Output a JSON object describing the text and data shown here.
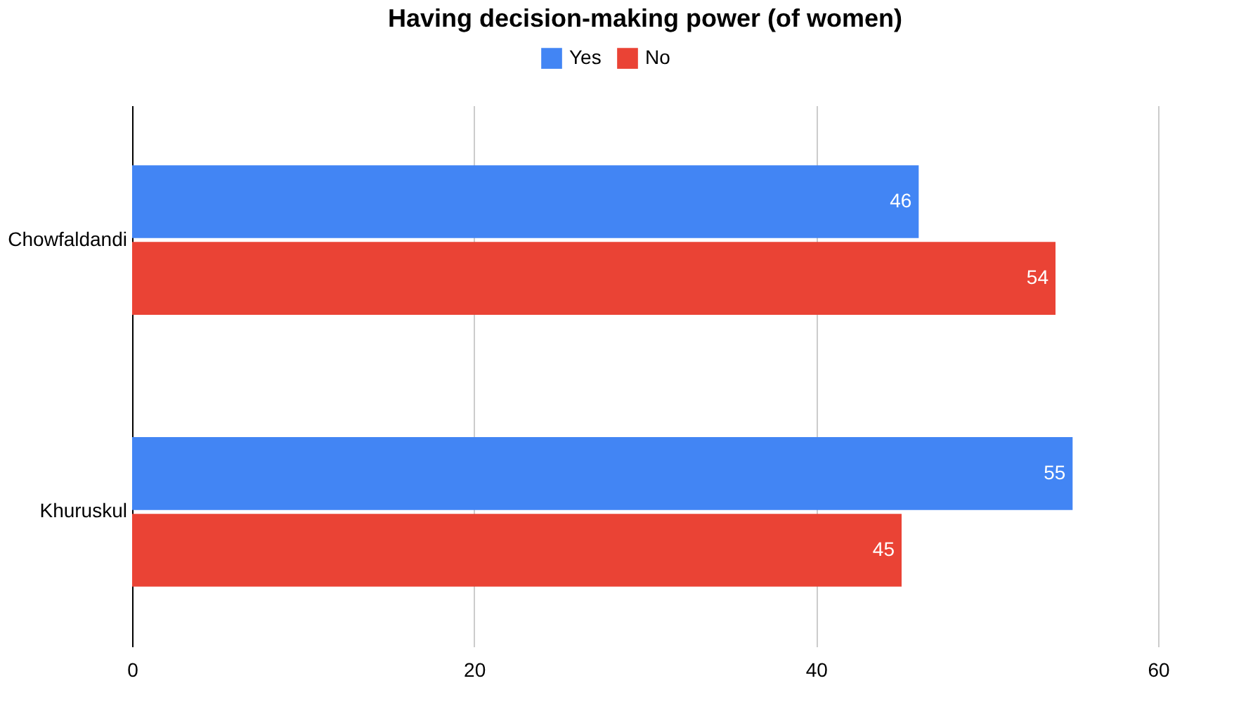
{
  "chart_data": {
    "type": "bar",
    "orientation": "horizontal",
    "title": "Having decision-making power (of women)",
    "categories": [
      "Chowfaldandi",
      "Khuruskul"
    ],
    "series": [
      {
        "name": "Yes",
        "color": "#4285f4",
        "values": [
          46,
          55
        ]
      },
      {
        "name": "No",
        "color": "#ea4335",
        "values": [
          54,
          45
        ]
      }
    ],
    "xlim": [
      0,
      60
    ],
    "xticks": [
      0,
      20,
      40,
      60
    ],
    "grid": "x",
    "legend": "top",
    "data_labels": true
  }
}
